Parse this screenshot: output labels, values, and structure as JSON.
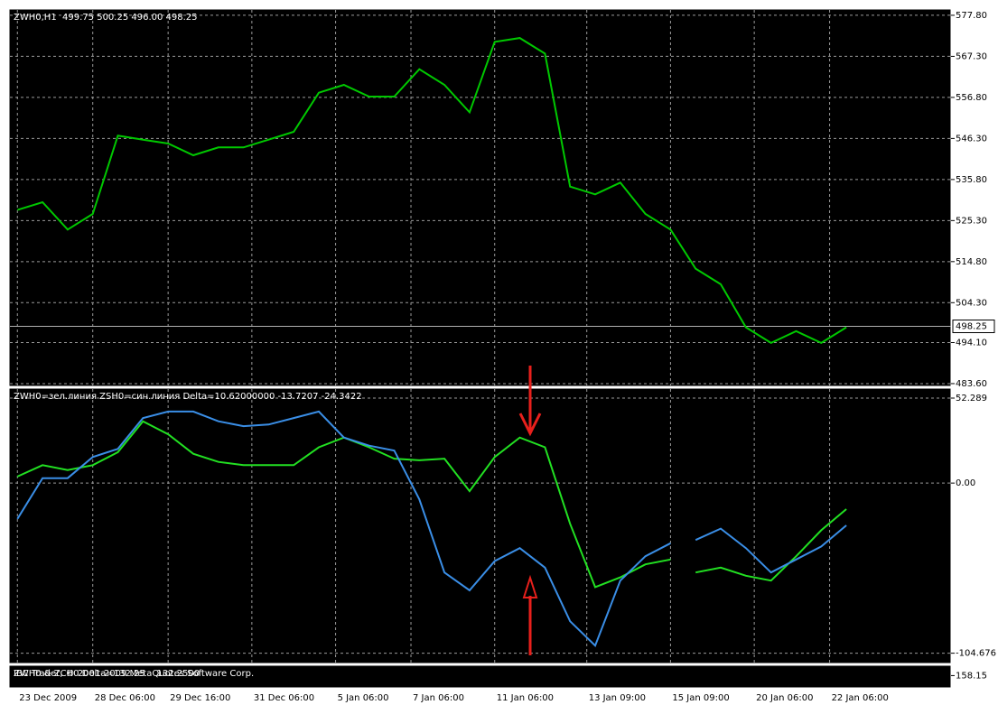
{
  "chart_data": [
    {
      "type": "line",
      "title": "ZWH0,H1  499.75 500.25 496.00 498.25",
      "color": "#00c800",
      "x": [
        0,
        3,
        6,
        9,
        12,
        15,
        18,
        21,
        24,
        27,
        30,
        33,
        36,
        39,
        42,
        45,
        48,
        51,
        54,
        57,
        60,
        63,
        66,
        69,
        72,
        75,
        78,
        81,
        84,
        87,
        90,
        93,
        96,
        99
      ],
      "values": [
        528,
        530,
        523,
        527,
        547,
        546,
        545,
        542,
        544,
        544,
        546,
        548,
        558,
        560,
        557,
        557,
        564,
        560,
        553,
        571,
        572,
        568,
        534,
        532,
        535,
        527,
        523,
        513,
        509,
        498,
        494,
        497,
        494,
        498
      ],
      "xlim": [
        -1,
        111.5
      ],
      "xticks": [
        {
          "value": 0,
          "label": "23 Dec 2009"
        },
        {
          "value": 9,
          "label": "28 Dec 06:00"
        },
        {
          "value": 18,
          "label": "29 Dec 16:00"
        },
        {
          "value": 28,
          "label": "31 Dec 06:00"
        },
        {
          "value": 38,
          "label": "5 Jan 06:00"
        },
        {
          "value": 47,
          "label": "7 Jan 06:00"
        },
        {
          "value": 57,
          "label": "11 Jan 06:00"
        },
        {
          "value": 68,
          "label": "13 Jan 09:00"
        },
        {
          "value": 78,
          "label": "15 Jan 09:00"
        },
        {
          "value": 88,
          "label": "20 Jan 06:00"
        },
        {
          "value": 97,
          "label": "22 Jan 06:00"
        }
      ],
      "ylim": [
        482.9,
        579.4
      ],
      "yticks": [
        {
          "value": 577.8,
          "label": "577.80"
        },
        {
          "value": 567.3,
          "label": "567.30"
        },
        {
          "value": 556.8,
          "label": "556.80"
        },
        {
          "value": 546.3,
          "label": "546.30"
        },
        {
          "value": 535.8,
          "label": "535.80"
        },
        {
          "value": 525.3,
          "label": "525.30"
        },
        {
          "value": 514.8,
          "label": "514.80"
        },
        {
          "value": 504.3,
          "label": "504.30"
        },
        {
          "value": 494.1,
          "label": "494.10"
        },
        {
          "value": 483.6,
          "label": "483.60"
        }
      ],
      "current": 498.25,
      "grid": true
    },
    {
      "type": "line",
      "title": "ZWH0=зел.линия ZSH0=син.линия Delta=10.62000000 -13.7207 -24.3422",
      "x": [
        0,
        3,
        6,
        9,
        12,
        15,
        18,
        21,
        24,
        27,
        30,
        33,
        36,
        39,
        42,
        45,
        48,
        51,
        54,
        57,
        60,
        63,
        66,
        69,
        72,
        75,
        78,
        80,
        81,
        84,
        87,
        90,
        93,
        96,
        99
      ],
      "series": [
        {
          "color": "#22e022",
          "values": [
            4,
            11,
            8,
            11,
            19,
            38,
            30,
            18,
            13,
            11,
            11,
            11,
            22,
            28,
            22,
            15,
            14,
            15,
            -5,
            16,
            28,
            22,
            -25,
            -64,
            -58,
            -50,
            -47,
            null,
            -55,
            -52,
            -57,
            -60,
            -45,
            -29,
            -16
          ]
        },
        {
          "color": "#3a8ee6",
          "values": [
            -22,
            3,
            3,
            16,
            21,
            40,
            44,
            44,
            38,
            35,
            36,
            40,
            44,
            28,
            23,
            20,
            -10,
            -55,
            -66,
            -48,
            -40,
            -52,
            -85,
            -100,
            -60,
            -45,
            -37,
            null,
            -35,
            -28,
            -40,
            -55,
            -47,
            -39,
            -26
          ]
        }
      ],
      "xlim": [
        -1,
        111.5
      ],
      "ylim": [
        -111,
        58.4
      ],
      "yticks": [
        52.289,
        {
          "value": 0,
          "label": "0.00"
        },
        -104.676
      ],
      "grid": true
    },
    {
      "type": "line",
      "title": "ZWH0 & ZCH0 Delta=132.25    132.2500",
      "annotation": "IBC Trader, © 2001-2009 MetaQuotes Software Corp.",
      "ylim": [
        150,
        165
      ],
      "yticks": [
        158.15
      ]
    }
  ]
}
